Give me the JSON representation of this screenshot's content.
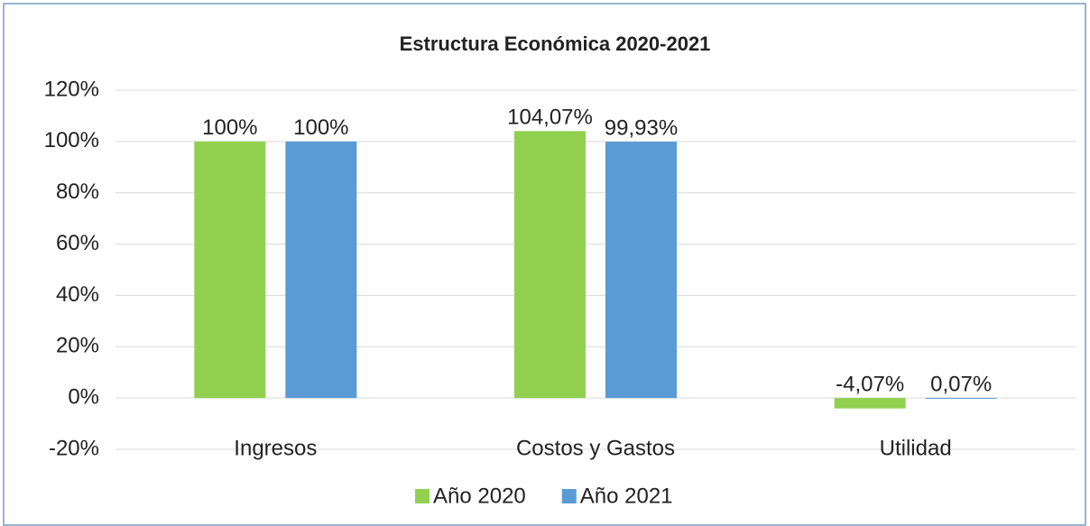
{
  "chart_data": {
    "type": "bar",
    "title": "Estructura Económica 2020-2021",
    "categories": [
      "Ingresos",
      "Costos y Gastos",
      "Utilidad"
    ],
    "series": [
      {
        "name": "Año 2020",
        "color": "#92d050",
        "values": [
          100,
          104.07,
          -4.07
        ],
        "value_labels": [
          "100%",
          "104,07%",
          "-4,07%"
        ]
      },
      {
        "name": "Año 2021",
        "color": "#5b9bd5",
        "values": [
          100,
          99.93,
          0.07
        ],
        "value_labels": [
          "100%",
          "99,93%",
          "0,07%"
        ]
      }
    ],
    "ylim": [
      -20,
      120
    ],
    "yticks": [
      {
        "value": -20,
        "label": "-20%"
      },
      {
        "value": 0,
        "label": "0%"
      },
      {
        "value": 20,
        "label": "20%"
      },
      {
        "value": 40,
        "label": "40%"
      },
      {
        "value": 60,
        "label": "60%"
      },
      {
        "value": 80,
        "label": "80%"
      },
      {
        "value": 100,
        "label": "100%"
      },
      {
        "value": 120,
        "label": "120%"
      }
    ],
    "grid": true,
    "legend": "bottom"
  }
}
